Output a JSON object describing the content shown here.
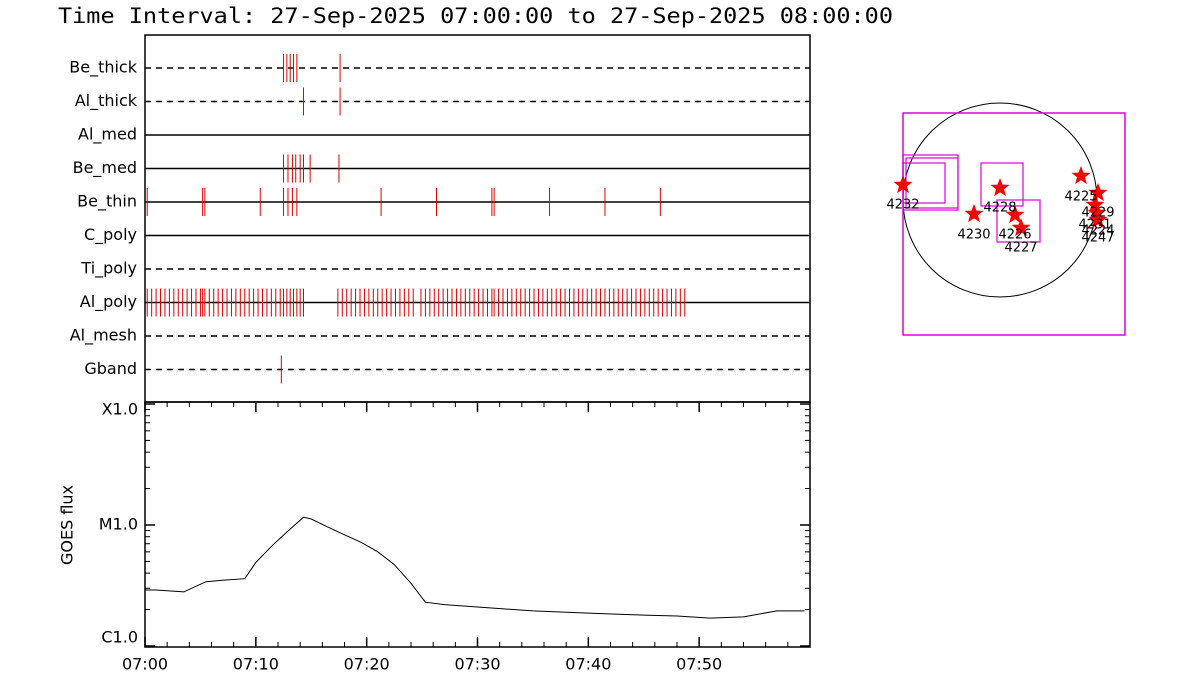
{
  "chart_data": [
    {
      "type": "timeline",
      "title": "Time Interval: 27-Sep-2025 07:00:00 to 27-Sep-2025 08:00:00",
      "categories": [
        "Be_thick",
        "Al_thick",
        "Al_med",
        "Be_med",
        "Be_thin",
        "C_poly",
        "Ti_poly",
        "Al_poly",
        "Al_mesh",
        "Gband"
      ],
      "line_styles": [
        "dashed",
        "dashed",
        "solid",
        "solid",
        "solid",
        "solid",
        "dashed",
        "solid",
        "dashed",
        "dashed"
      ],
      "color": "#e00000",
      "xlim": [
        0,
        60
      ],
      "events": [
        [
          12.5,
          12.8,
          13.1,
          13.4,
          13.7,
          17.6
        ],
        [
          14.3,
          17.6
        ],
        [],
        [
          12.5,
          12.9,
          13.3,
          13.6,
          14.0,
          14.3,
          14.9,
          17.5
        ],
        [
          0.2,
          5.2,
          5.4,
          10.4,
          12.5,
          12.9,
          13.3,
          13.7,
          21.3,
          26.3,
          31.3,
          31.5,
          36.5,
          41.5,
          46.5
        ],
        [],
        [],
        [
          0.2,
          0.6,
          1.0,
          1.4,
          1.8,
          2.2,
          2.6,
          3.0,
          3.4,
          3.8,
          4.2,
          4.6,
          5.0,
          5.2,
          5.4,
          5.8,
          6.2,
          6.6,
          7.0,
          7.4,
          7.8,
          8.2,
          8.6,
          9.0,
          9.4,
          9.8,
          10.2,
          10.6,
          11.0,
          11.4,
          11.8,
          12.2,
          12.5,
          12.8,
          13.1,
          13.4,
          13.7,
          14.0,
          14.3,
          17.4,
          17.8,
          18.2,
          18.6,
          19.0,
          19.4,
          19.8,
          20.2,
          20.6,
          21.0,
          21.4,
          21.8,
          22.2,
          22.6,
          23.0,
          23.4,
          23.8,
          24.2,
          24.9,
          25.3,
          25.7,
          26.1,
          26.5,
          26.9,
          27.3,
          27.7,
          28.1,
          28.5,
          28.9,
          29.3,
          29.7,
          30.1,
          30.5,
          30.9,
          31.3,
          31.5,
          31.9,
          32.3,
          32.7,
          33.1,
          33.5,
          33.9,
          34.3,
          34.7,
          35.1,
          35.5,
          35.9,
          36.3,
          36.7,
          37.1,
          37.5,
          37.9,
          38.3,
          38.7,
          39.1,
          39.5,
          39.9,
          40.3,
          40.7,
          41.1,
          41.5,
          41.9,
          42.3,
          42.7,
          43.1,
          43.5,
          43.9,
          44.3,
          44.7,
          45.1,
          45.5,
          45.9,
          46.3,
          46.7,
          47.1,
          47.5,
          47.9,
          48.3,
          48.7
        ],
        [],
        [
          12.3
        ]
      ]
    },
    {
      "type": "line",
      "ylabel": "GOES flux",
      "color": "#000000",
      "log_y": true,
      "x": [
        0,
        1.0,
        3.5,
        5.5,
        7.0,
        9.0,
        10.0,
        11.5,
        13.0,
        14.3,
        15.0,
        16.5,
        18.0,
        19.5,
        21.0,
        22.5,
        24.0,
        25.3,
        27.0,
        30.0,
        35.0,
        40.0,
        45.0,
        48.0,
        51.0,
        54.0,
        57.0,
        59.5
      ],
      "values": [
        2.9e-06,
        2.9e-06,
        2.8e-06,
        3.4e-06,
        3.5e-06,
        3.6e-06,
        4.9e-06,
        6.8e-06,
        9.1e-06,
        1.16e-05,
        1.12e-05,
        9.6e-06,
        8.3e-06,
        7.2e-06,
        6e-06,
        4.7e-06,
        3.3e-06,
        2.3e-06,
        2.2e-06,
        2.1e-06,
        1.95e-06,
        1.87e-06,
        1.8e-06,
        1.77e-06,
        1.7e-06,
        1.74e-06,
        1.95e-06,
        1.95e-06
      ],
      "xlim": [
        0,
        60
      ],
      "xticks": [
        {
          "value": 0,
          "label": "07:00"
        },
        {
          "value": 10,
          "label": "07:10"
        },
        {
          "value": 20,
          "label": "07:20"
        },
        {
          "value": 30,
          "label": "07:30"
        },
        {
          "value": 40,
          "label": "07:40"
        },
        {
          "value": 50,
          "label": "07:50"
        }
      ],
      "xminorticks": [
        2,
        4,
        6,
        8,
        12,
        14,
        16,
        18,
        22,
        24,
        26,
        28,
        32,
        34,
        36,
        38,
        42,
        44,
        46,
        48,
        52,
        54,
        56,
        58
      ],
      "ylim": [
        1e-06,
        0.0001
      ],
      "yticks": [
        {
          "value": 1e-06,
          "label": "C1.0"
        },
        {
          "value": 1e-05,
          "label": "M1.0"
        },
        {
          "value": 0.0001,
          "label": "X1.0"
        }
      ],
      "yminorticks": [
        2e-06,
        3e-06,
        4e-06,
        5e-06,
        6e-06,
        7e-06,
        8e-06,
        9e-06,
        2e-05,
        3e-05,
        4e-05,
        5e-05,
        6e-05,
        7e-05,
        8e-05,
        9e-05
      ]
    }
  ],
  "solar_map": {
    "regions": [
      "4232",
      "4228",
      "4230",
      "4226",
      "4227",
      "4225",
      "4229",
      "4231",
      "4224",
      "4247"
    ]
  }
}
